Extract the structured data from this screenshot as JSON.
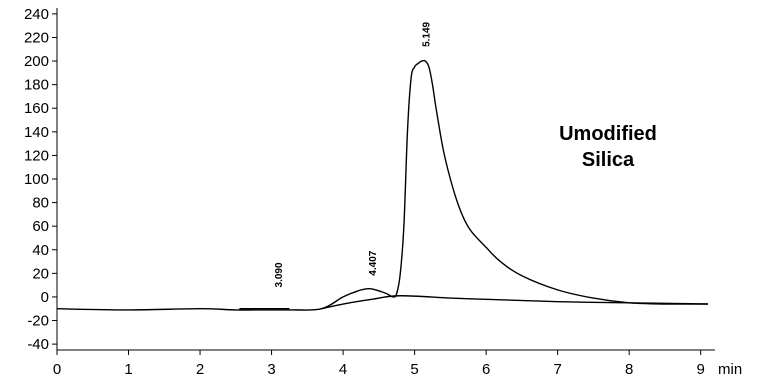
{
  "chart_data": {
    "type": "line",
    "title": "",
    "xlabel": "min",
    "ylabel": "",
    "xlim": [
      0,
      9.2
    ],
    "ylim": [
      -45,
      245
    ],
    "x_ticks": [
      "0",
      "1",
      "2",
      "3",
      "4",
      "5",
      "6",
      "7",
      "8",
      "9"
    ],
    "y_ticks": [
      "240",
      "220",
      "200",
      "180",
      "160",
      "140",
      "120",
      "100",
      "80",
      "60",
      "40",
      "20",
      "0",
      "-20",
      "-40"
    ],
    "grid": false,
    "legend": "none",
    "annotation": [
      "Umodified",
      "Silica"
    ],
    "peak_labels": [
      {
        "text": "3.090",
        "x": 3.09,
        "y": 8
      },
      {
        "text": "4.407",
        "x": 4.407,
        "y": 18
      },
      {
        "text": "5.149",
        "x": 5.149,
        "y": 212
      }
    ],
    "series": [
      {
        "x": [
          0,
          1,
          2,
          2.5,
          3,
          3.3,
          3.7,
          4.0,
          4.2,
          4.35,
          4.45,
          4.6,
          4.7,
          4.75,
          4.8,
          4.85,
          4.9,
          4.95,
          5.0,
          5.05,
          5.1,
          5.15,
          5.2,
          5.25,
          5.3,
          5.4,
          5.5,
          5.6,
          5.7,
          5.8,
          6.0,
          6.2,
          6.5,
          7.0,
          7.5,
          8.0,
          8.5,
          9.1
        ],
        "values": [
          -10,
          -11,
          -10,
          -11,
          -11,
          -11,
          -10,
          0,
          5,
          7,
          6,
          3,
          0,
          3,
          20,
          60,
          140,
          185,
          195,
          198,
          200,
          200,
          195,
          180,
          160,
          125,
          100,
          80,
          65,
          55,
          42,
          30,
          18,
          6,
          -1,
          -5,
          -6,
          -6
        ],
        "color": "#000000"
      },
      {
        "x": [
          3.7,
          4.0,
          4.4,
          4.8,
          5.5,
          6.0,
          7.0,
          8.0,
          9.1
        ],
        "values": [
          -10,
          -6,
          -2,
          1,
          -1,
          -2,
          -4,
          -5,
          -6
        ],
        "color": "#000000"
      },
      {
        "x": [
          2.55,
          3.25
        ],
        "values": [
          -10,
          -10
        ],
        "color": "#000000"
      }
    ]
  }
}
